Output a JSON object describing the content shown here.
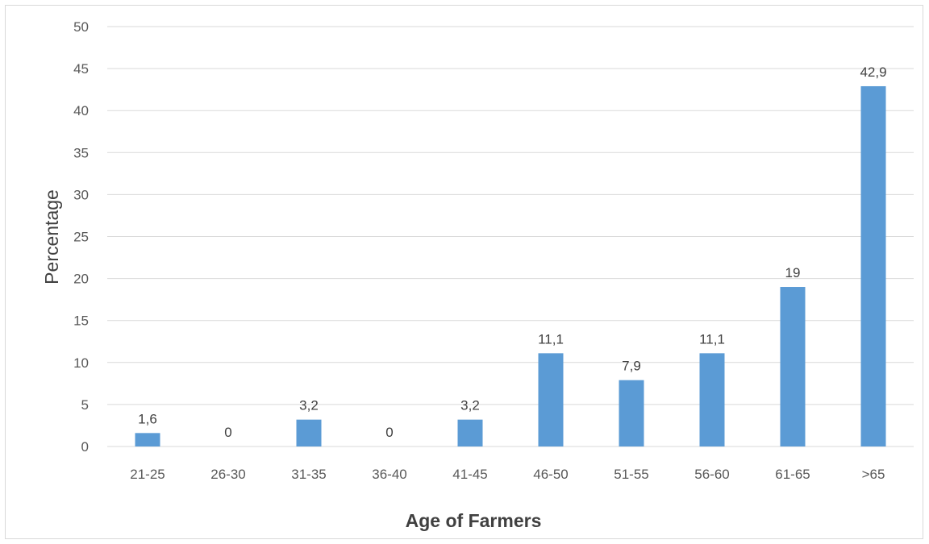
{
  "chart_data": {
    "type": "bar",
    "categories": [
      "21-25",
      "26-30",
      "31-35",
      "36-40",
      "41-45",
      "46-50",
      "51-55",
      "56-60",
      "61-65",
      ">65"
    ],
    "values": [
      1.6,
      0,
      3.2,
      0,
      3.2,
      11.1,
      7.9,
      11.1,
      19,
      42.9
    ],
    "data_labels": [
      "1,6",
      "0",
      "3,2",
      "0",
      "3,2",
      "11,1",
      "7,9",
      "11,1",
      "19",
      "42,9"
    ],
    "xlabel": "Age of Farmers",
    "ylabel": "Percentage",
    "ylim": [
      0,
      50
    ],
    "yticks": [
      0,
      5,
      10,
      15,
      20,
      25,
      30,
      35,
      40,
      45,
      50
    ],
    "grid": true,
    "bar_color": "#5b9bd5",
    "grid_color": "#d9d9d9"
  }
}
